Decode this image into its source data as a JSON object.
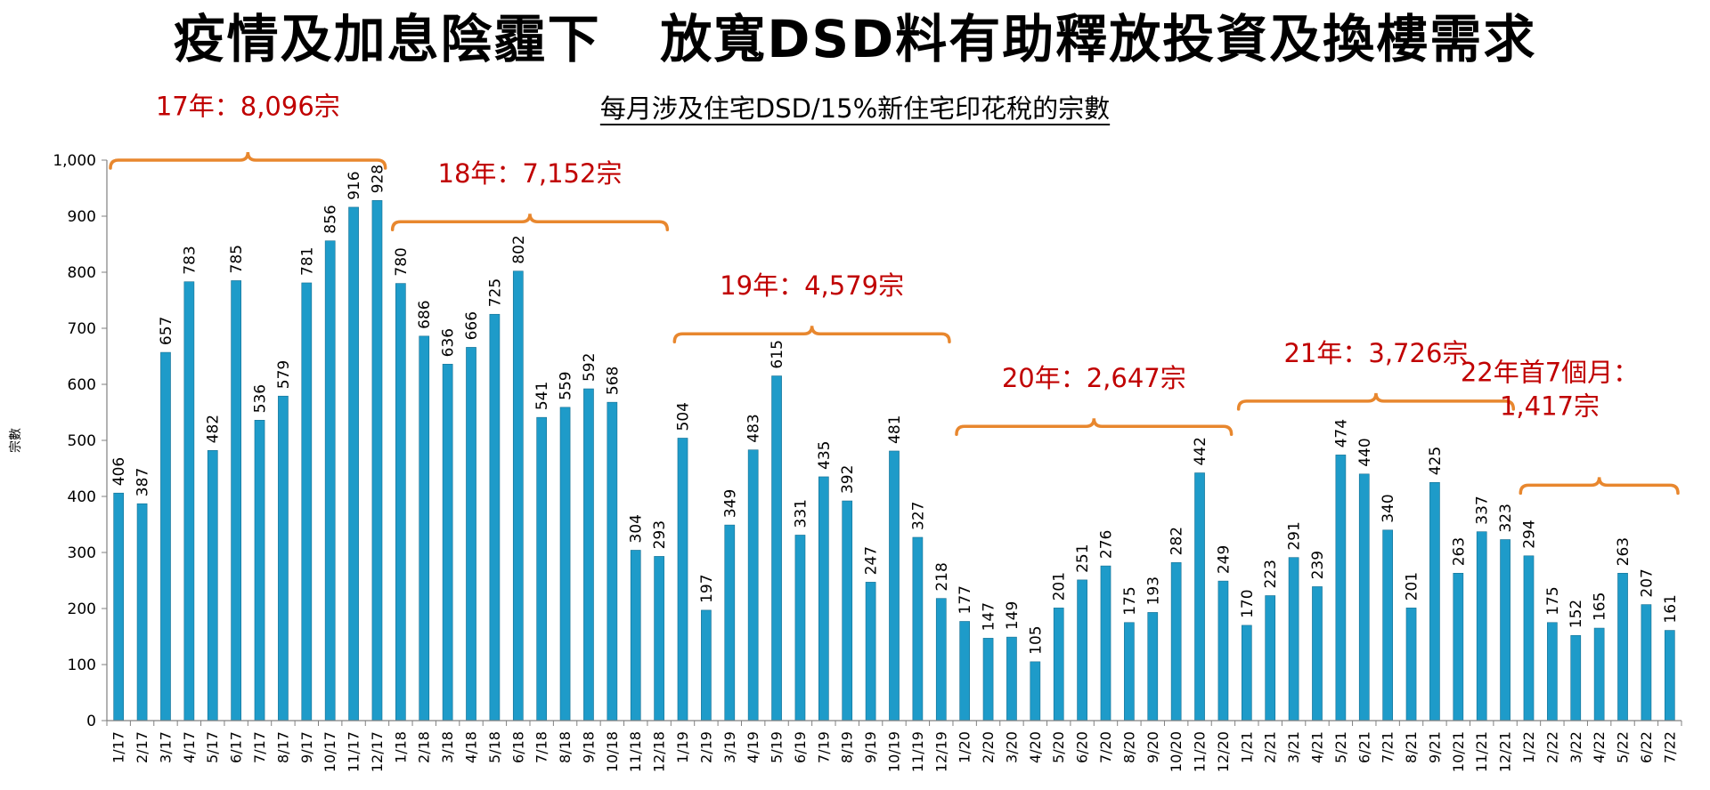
{
  "slide": {
    "title": "疫情及加息陰霾下   放寬DSD料有助釋放投資及換樓需求"
  },
  "chart_data": {
    "type": "bar",
    "title": "每月涉及住宅DSD/15%新住宅印花稅的宗數",
    "xlabel": "",
    "ylabel": "宗數",
    "ylim": [
      0,
      1000
    ],
    "yticks": [
      "0",
      "100",
      "200",
      "300",
      "400",
      "500",
      "600",
      "700",
      "800",
      "900",
      "1,000"
    ],
    "grid": false,
    "bar_color": "#1E9BC9",
    "annotation_color": "#C00000",
    "brace_color": "#E8872E",
    "categories": [
      "1/17",
      "2/17",
      "3/17",
      "4/17",
      "5/17",
      "6/17",
      "7/17",
      "8/17",
      "9/17",
      "10/17",
      "11/17",
      "12/17",
      "1/18",
      "2/18",
      "3/18",
      "4/18",
      "5/18",
      "6/18",
      "7/18",
      "8/18",
      "9/18",
      "10/18",
      "11/18",
      "12/18",
      "1/19",
      "2/19",
      "3/19",
      "4/19",
      "5/19",
      "6/19",
      "7/19",
      "8/19",
      "9/19",
      "10/19",
      "11/19",
      "12/19",
      "1/20",
      "2/20",
      "3/20",
      "4/20",
      "5/20",
      "6/20",
      "7/20",
      "8/20",
      "9/20",
      "10/20",
      "11/20",
      "12/20",
      "1/21",
      "2/21",
      "3/21",
      "4/21",
      "5/21",
      "6/21",
      "7/21",
      "8/21",
      "9/21",
      "10/21",
      "11/21",
      "12/21",
      "1/22",
      "2/22",
      "3/22",
      "4/22",
      "5/22",
      "6/22",
      "7/22"
    ],
    "values": [
      406,
      387,
      657,
      783,
      482,
      785,
      536,
      579,
      781,
      856,
      916,
      928,
      780,
      686,
      636,
      666,
      725,
      802,
      541,
      559,
      592,
      568,
      304,
      293,
      504,
      197,
      349,
      483,
      615,
      331,
      435,
      392,
      247,
      481,
      327,
      218,
      177,
      147,
      149,
      105,
      201,
      251,
      276,
      175,
      193,
      282,
      442,
      249,
      170,
      223,
      291,
      239,
      474,
      440,
      340,
      201,
      425,
      263,
      337,
      323,
      294,
      175,
      152,
      165,
      263,
      207,
      161
    ],
    "value_labels": [
      "406",
      "387",
      "657",
      "783",
      "482",
      "785",
      "536",
      "579",
      "781",
      "856",
      "916",
      "928",
      "780",
      "686",
      "636",
      "666",
      "725",
      "802",
      "541",
      "559",
      "592",
      "568",
      "304",
      "293",
      "504",
      "197",
      "349",
      "483",
      "615",
      "331",
      "435",
      "392",
      "247",
      "481",
      "327",
      "218",
      "177",
      "147",
      "149",
      "105",
      "201",
      "251",
      "276",
      "175",
      "193",
      "282",
      "442",
      "249",
      "170",
      "223",
      "291",
      "239",
      "474",
      "440",
      "340",
      "201",
      "425",
      "263",
      "337",
      "323",
      "294",
      "175",
      "152",
      "165",
      "263",
      "207",
      "161"
    ],
    "annotations": [
      {
        "lines": [
          "17年：8,096宗"
        ],
        "start_index": 0,
        "end_index": 11,
        "label_value": 1080,
        "brace_value": 1000
      },
      {
        "lines": [
          "18年：7,152宗"
        ],
        "start_index": 12,
        "end_index": 23,
        "label_value": 960,
        "brace_value": 890
      },
      {
        "lines": [
          "19年：4,579宗"
        ],
        "start_index": 24,
        "end_index": 35,
        "label_value": 760,
        "brace_value": 690
      },
      {
        "lines": [
          "20年：2,647宗"
        ],
        "start_index": 36,
        "end_index": 47,
        "label_value": 595,
        "brace_value": 525
      },
      {
        "lines": [
          "21年：3,726宗"
        ],
        "start_index": 48,
        "end_index": 59,
        "label_value": 640,
        "brace_value": 570
      },
      {
        "lines": [
          "22年首7個月：",
          "1,417宗"
        ],
        "start_index": 60,
        "end_index": 66,
        "label_value": 545,
        "brace_value": 420
      }
    ]
  }
}
